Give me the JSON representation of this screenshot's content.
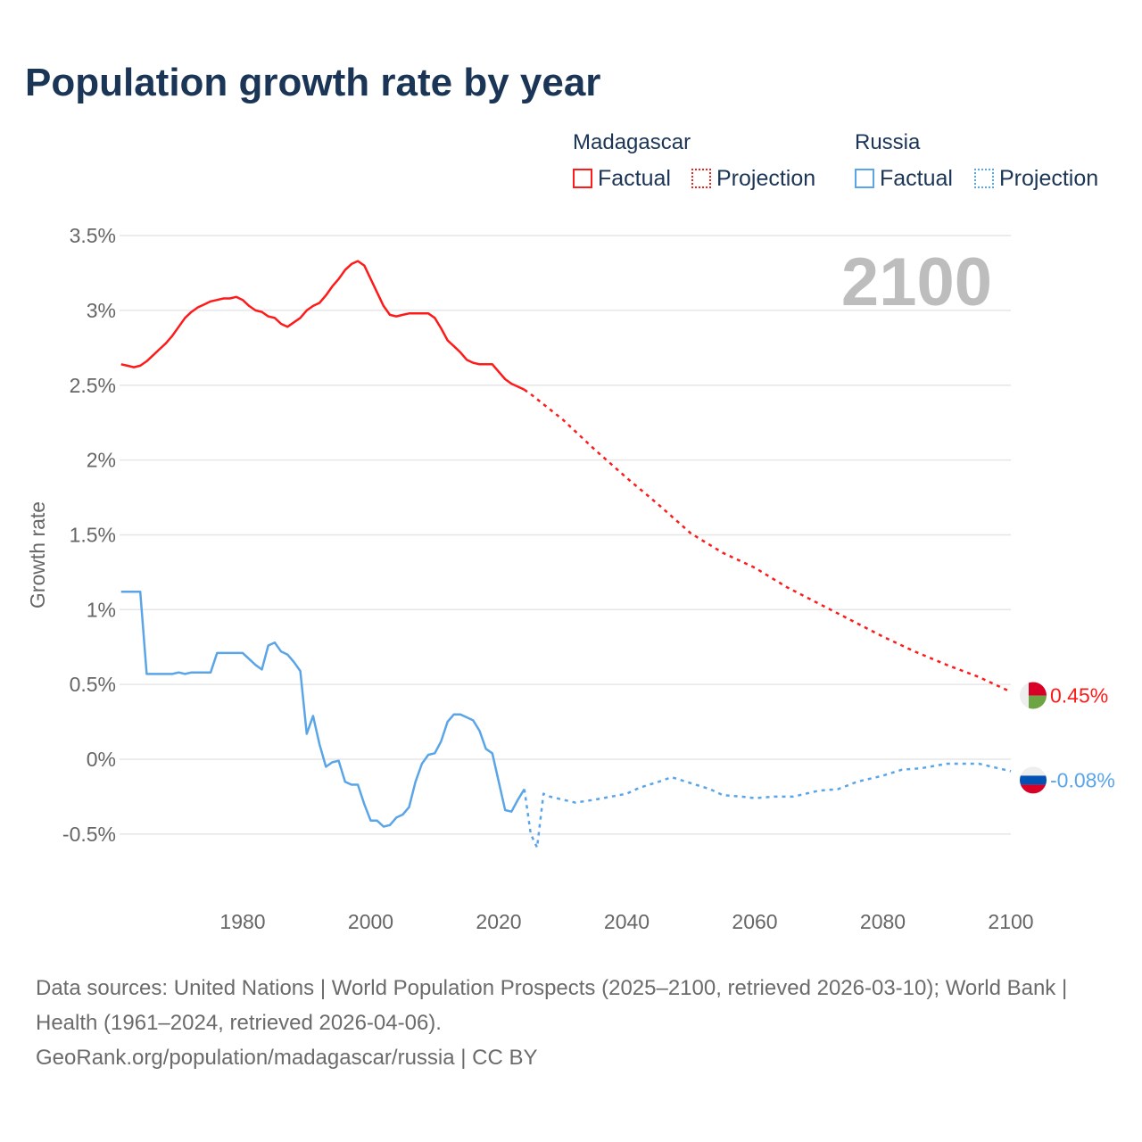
{
  "title": "Population growth rate by year",
  "legend": {
    "groups": [
      {
        "name": "Madagascar",
        "factual": "Factual",
        "projection": "Projection",
        "color": "#ff1a1a"
      },
      {
        "name": "Russia",
        "factual": "Factual",
        "projection": "Projection",
        "color": "#5aa5e8"
      }
    ]
  },
  "year_label": "2100",
  "footer": {
    "sources": "Data sources: United Nations | World Population Prospects (2025–2100, retrieved 2026-03-10); World Bank | Health (1961–2024, retrieved 2026-04-06).",
    "credit": "GeoRank.org/population/madagascar/russia | CC BY"
  },
  "chart_data": {
    "type": "line",
    "title": "Population growth rate by year",
    "xlabel": "",
    "ylabel": "Growth rate",
    "xlim": [
      1961,
      2100
    ],
    "ylim": [
      -0.8,
      3.6
    ],
    "xticks": [
      1980,
      2000,
      2020,
      2040,
      2060,
      2080,
      2100
    ],
    "xtick_labels": [
      "1980",
      "2000",
      "2020",
      "2040",
      "2060",
      "2080",
      "2100"
    ],
    "yticks": [
      -0.5,
      0,
      0.5,
      1,
      1.5,
      2,
      2.5,
      3,
      3.5
    ],
    "ytick_labels": [
      "-0.5%",
      "0%",
      "0.5%",
      "1%",
      "1.5%",
      "2%",
      "2.5%",
      "3%",
      "3.5%"
    ],
    "grid": true,
    "legend_position": "top-right",
    "series": [
      {
        "name": "Madagascar",
        "kind": "factual",
        "color": "#ff1a1a",
        "x": [
          1961,
          1962,
          1963,
          1964,
          1965,
          1966,
          1967,
          1968,
          1969,
          1970,
          1971,
          1972,
          1973,
          1974,
          1975,
          1976,
          1977,
          1978,
          1979,
          1980,
          1981,
          1982,
          1983,
          1984,
          1985,
          1986,
          1987,
          1988,
          1989,
          1990,
          1991,
          1992,
          1993,
          1994,
          1995,
          1996,
          1997,
          1998,
          1999,
          2000,
          2001,
          2002,
          2003,
          2004,
          2005,
          2006,
          2007,
          2008,
          2009,
          2010,
          2011,
          2012,
          2013,
          2014,
          2015,
          2016,
          2017,
          2018,
          2019,
          2020,
          2021,
          2022,
          2023,
          2024
        ],
        "y": [
          2.64,
          2.63,
          2.62,
          2.63,
          2.66,
          2.7,
          2.74,
          2.78,
          2.83,
          2.89,
          2.95,
          2.99,
          3.02,
          3.04,
          3.06,
          3.07,
          3.08,
          3.08,
          3.09,
          3.07,
          3.03,
          3.0,
          2.99,
          2.96,
          2.95,
          2.91,
          2.89,
          2.92,
          2.95,
          3.0,
          3.03,
          3.05,
          3.1,
          3.16,
          3.21,
          3.27,
          3.31,
          3.33,
          3.3,
          3.21,
          3.12,
          3.03,
          2.97,
          2.96,
          2.97,
          2.98,
          2.98,
          2.98,
          2.98,
          2.95,
          2.88,
          2.8,
          2.76,
          2.72,
          2.67,
          2.65,
          2.64,
          2.64,
          2.64,
          2.59,
          2.54,
          2.51,
          2.49,
          2.47
        ]
      },
      {
        "name": "Madagascar",
        "kind": "projection",
        "color": "#ff1a1a",
        "x": [
          2024,
          2025,
          2030,
          2035,
          2040,
          2045,
          2050,
          2055,
          2060,
          2065,
          2070,
          2075,
          2080,
          2085,
          2090,
          2095,
          2100
        ],
        "y": [
          2.47,
          2.44,
          2.27,
          2.07,
          1.88,
          1.7,
          1.51,
          1.38,
          1.28,
          1.15,
          1.04,
          0.93,
          0.82,
          0.72,
          0.63,
          0.55,
          0.45
        ]
      },
      {
        "name": "Russia",
        "kind": "factual",
        "color": "#5aa5e8",
        "x": [
          1961,
          1962,
          1963,
          1964,
          1965,
          1966,
          1967,
          1968,
          1969,
          1970,
          1971,
          1972,
          1973,
          1974,
          1975,
          1976,
          1977,
          1978,
          1979,
          1980,
          1981,
          1982,
          1983,
          1984,
          1985,
          1986,
          1987,
          1988,
          1989,
          1990,
          1991,
          1992,
          1993,
          1994,
          1995,
          1996,
          1997,
          1998,
          1999,
          2000,
          2001,
          2002,
          2003,
          2004,
          2005,
          2006,
          2007,
          2008,
          2009,
          2010,
          2011,
          2012,
          2013,
          2014,
          2015,
          2016,
          2017,
          2018,
          2019,
          2020,
          2021,
          2022,
          2023,
          2024
        ],
        "y": [
          1.12,
          1.12,
          1.12,
          1.12,
          0.57,
          0.57,
          0.57,
          0.57,
          0.57,
          0.58,
          0.57,
          0.58,
          0.58,
          0.58,
          0.58,
          0.71,
          0.71,
          0.71,
          0.71,
          0.71,
          0.67,
          0.63,
          0.6,
          0.76,
          0.78,
          0.72,
          0.7,
          0.65,
          0.59,
          0.17,
          0.29,
          0.1,
          -0.05,
          -0.02,
          -0.01,
          -0.15,
          -0.17,
          -0.17,
          -0.3,
          -0.41,
          -0.41,
          -0.45,
          -0.44,
          -0.39,
          -0.37,
          -0.32,
          -0.15,
          -0.03,
          0.03,
          0.04,
          0.12,
          0.25,
          0.3,
          0.3,
          0.28,
          0.26,
          0.19,
          0.07,
          0.04,
          -0.15,
          -0.34,
          -0.35,
          -0.27,
          -0.2
        ]
      },
      {
        "name": "Russia",
        "kind": "projection",
        "color": "#5aa5e8",
        "x": [
          2024,
          2025,
          2026,
          2027,
          2028,
          2030,
          2032,
          2035,
          2040,
          2042,
          2045,
          2047,
          2050,
          2053,
          2055,
          2058,
          2060,
          2063,
          2066,
          2070,
          2073,
          2076,
          2080,
          2083,
          2086,
          2090,
          2093,
          2095,
          2100
        ],
        "y": [
          -0.2,
          -0.5,
          -0.59,
          -0.23,
          -0.25,
          -0.27,
          -0.29,
          -0.27,
          -0.23,
          -0.19,
          -0.15,
          -0.12,
          -0.16,
          -0.2,
          -0.24,
          -0.25,
          -0.26,
          -0.25,
          -0.25,
          -0.21,
          -0.2,
          -0.15,
          -0.11,
          -0.07,
          -0.06,
          -0.03,
          -0.03,
          -0.03,
          -0.08
        ]
      }
    ],
    "end_labels": [
      {
        "name": "Madagascar",
        "value": 0.45,
        "label": "0.45%"
      },
      {
        "name": "Russia",
        "value": -0.08,
        "label": "-0.08%"
      }
    ]
  }
}
